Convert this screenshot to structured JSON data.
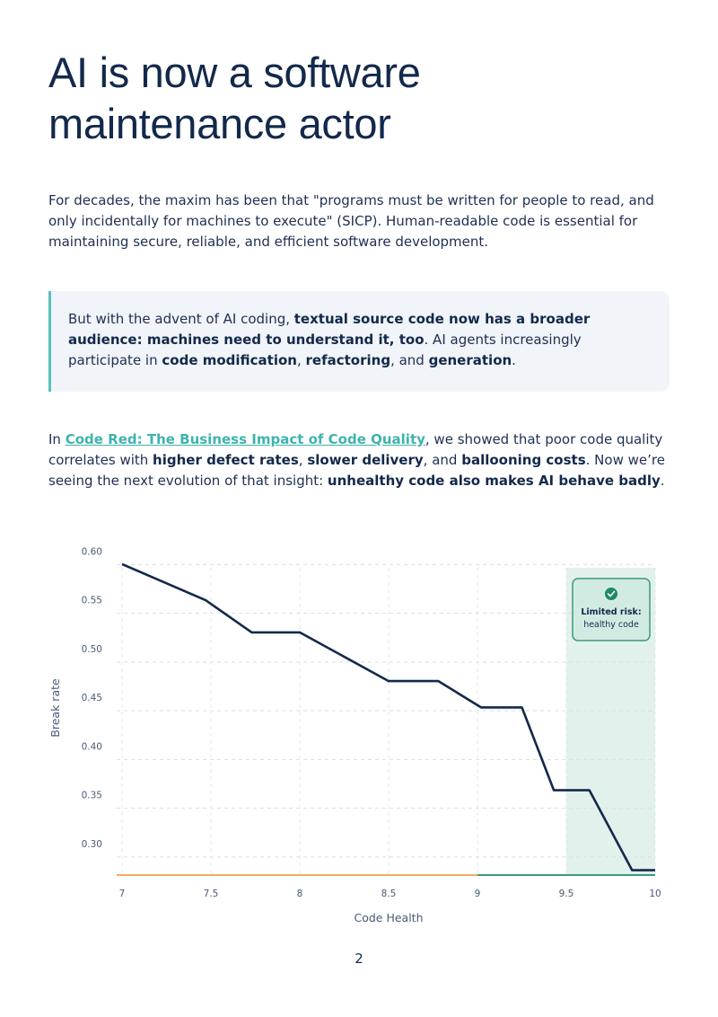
{
  "document": {
    "title_line1": "AI is now a software",
    "title_line2": "maintenance actor",
    "intro": "For decades, the maxim has been that \"programs must be written for people to read, and only incidentally for machines to execute\" (SICP). Human-readable code is essential for maintaining secure, reliable, and efficient software development.",
    "callout": {
      "lead": "But with the advent of AI coding, ",
      "bold1": "textual source code now has a broader audience: machines need to understand it, too",
      "mid1": ". AI agents increasingly participate in ",
      "bold2": "code modification",
      "sep1": ", ",
      "bold3": "refactoring",
      "sep2": ", and ",
      "bold4": "generation",
      "end": "."
    },
    "para2": {
      "lead": "In ",
      "link": "Code Red: The Business Impact of Code Quality",
      "mid1": ", we showed that poor code quality correlates with ",
      "bold1": "higher defect rates",
      "sep1": ", ",
      "bold2": "slower delivery",
      "sep2": ", and ",
      "bold3": "ballooning costs",
      "mid2": ". Now we’re seeing the next evolution of that insight: ",
      "bold4": "unhealthy code also makes AI behave badly",
      "end": "."
    },
    "page_number": "2"
  },
  "chart_data": {
    "type": "line",
    "xlabel": "Code Health",
    "ylabel": "Break rate",
    "xlim": [
      7,
      10
    ],
    "ylim": [
      0.275,
      0.605
    ],
    "x_ticks": [
      "7",
      "7.5",
      "8",
      "8.5",
      "9",
      "9.5",
      "10"
    ],
    "x_tick_values": [
      7,
      7.5,
      8,
      8.5,
      9,
      9.5,
      10
    ],
    "y_ticks": [
      "0.60",
      "0.55",
      "0.50",
      "0.45",
      "0.40",
      "0.35",
      "0.30"
    ],
    "y_tick_values": [
      0.6,
      0.55,
      0.5,
      0.45,
      0.4,
      0.35,
      0.3
    ],
    "grid": true,
    "series": [
      {
        "x": [
          7.0,
          7.47,
          7.73,
          8.0,
          8.5,
          8.78,
          9.02,
          9.25,
          9.43,
          9.63,
          9.87,
          10.0
        ],
        "values": [
          0.594,
          0.557,
          0.524,
          0.524,
          0.474,
          0.474,
          0.447,
          0.447,
          0.362,
          0.362,
          0.28,
          0.28
        ],
        "color": "#14284b"
      }
    ],
    "highlight_region": {
      "x_from": 9.5,
      "x_to": 10,
      "color": "#e3f1ec"
    },
    "baseline_segments": [
      {
        "x_from": 7,
        "x_to": 9,
        "color": "#f3ab63"
      },
      {
        "x_from": 9,
        "x_to": 10,
        "color": "#3a9b7a"
      }
    ],
    "annotation": {
      "icon": "check-circle-icon",
      "title": "Limited risk:",
      "text": "healthy code",
      "border_color": "#3a9b7a",
      "fill_color": "#d2ebe2"
    }
  }
}
